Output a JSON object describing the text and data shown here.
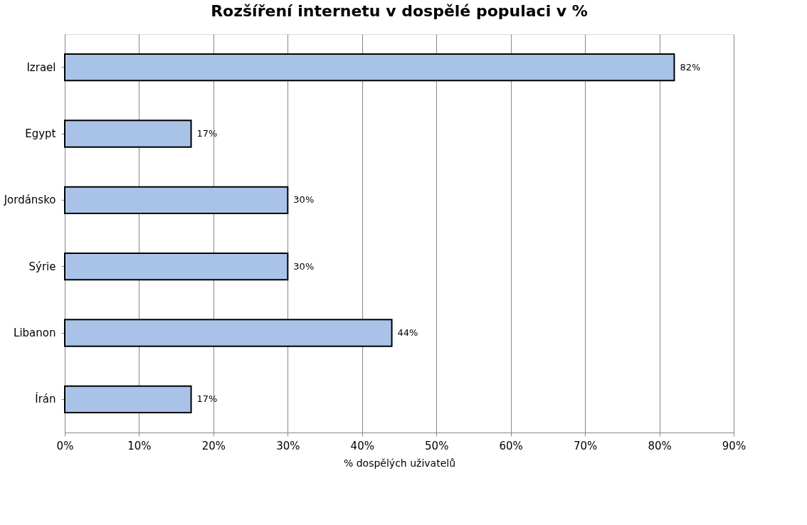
{
  "chart_data": {
    "type": "bar",
    "orientation": "horizontal",
    "title": "Rozšíření internetu v dospělé populaci v %",
    "xlabel": "% dospělých uživatelů",
    "categories": [
      "Izrael",
      "Egypt",
      "Jordánsko",
      "Sýrie",
      "Libanon",
      "Írán"
    ],
    "values": [
      82,
      17,
      30,
      30,
      44,
      17
    ],
    "value_labels": [
      "82%",
      "17%",
      "30%",
      "30%",
      "44%",
      "17%"
    ],
    "color": "#a9c3e8",
    "xlim": [
      0,
      90
    ],
    "xticks": [
      {
        "value": 0,
        "label": "0%"
      },
      {
        "value": 10,
        "label": "10%"
      },
      {
        "value": 20,
        "label": "20%"
      },
      {
        "value": 30,
        "label": "30%"
      },
      {
        "value": 40,
        "label": "40%"
      },
      {
        "value": 50,
        "label": "50%"
      },
      {
        "value": 60,
        "label": "60%"
      },
      {
        "value": 70,
        "label": "70%"
      },
      {
        "value": 80,
        "label": "80%"
      },
      {
        "value": 90,
        "label": "90%"
      }
    ],
    "grid": "x"
  }
}
